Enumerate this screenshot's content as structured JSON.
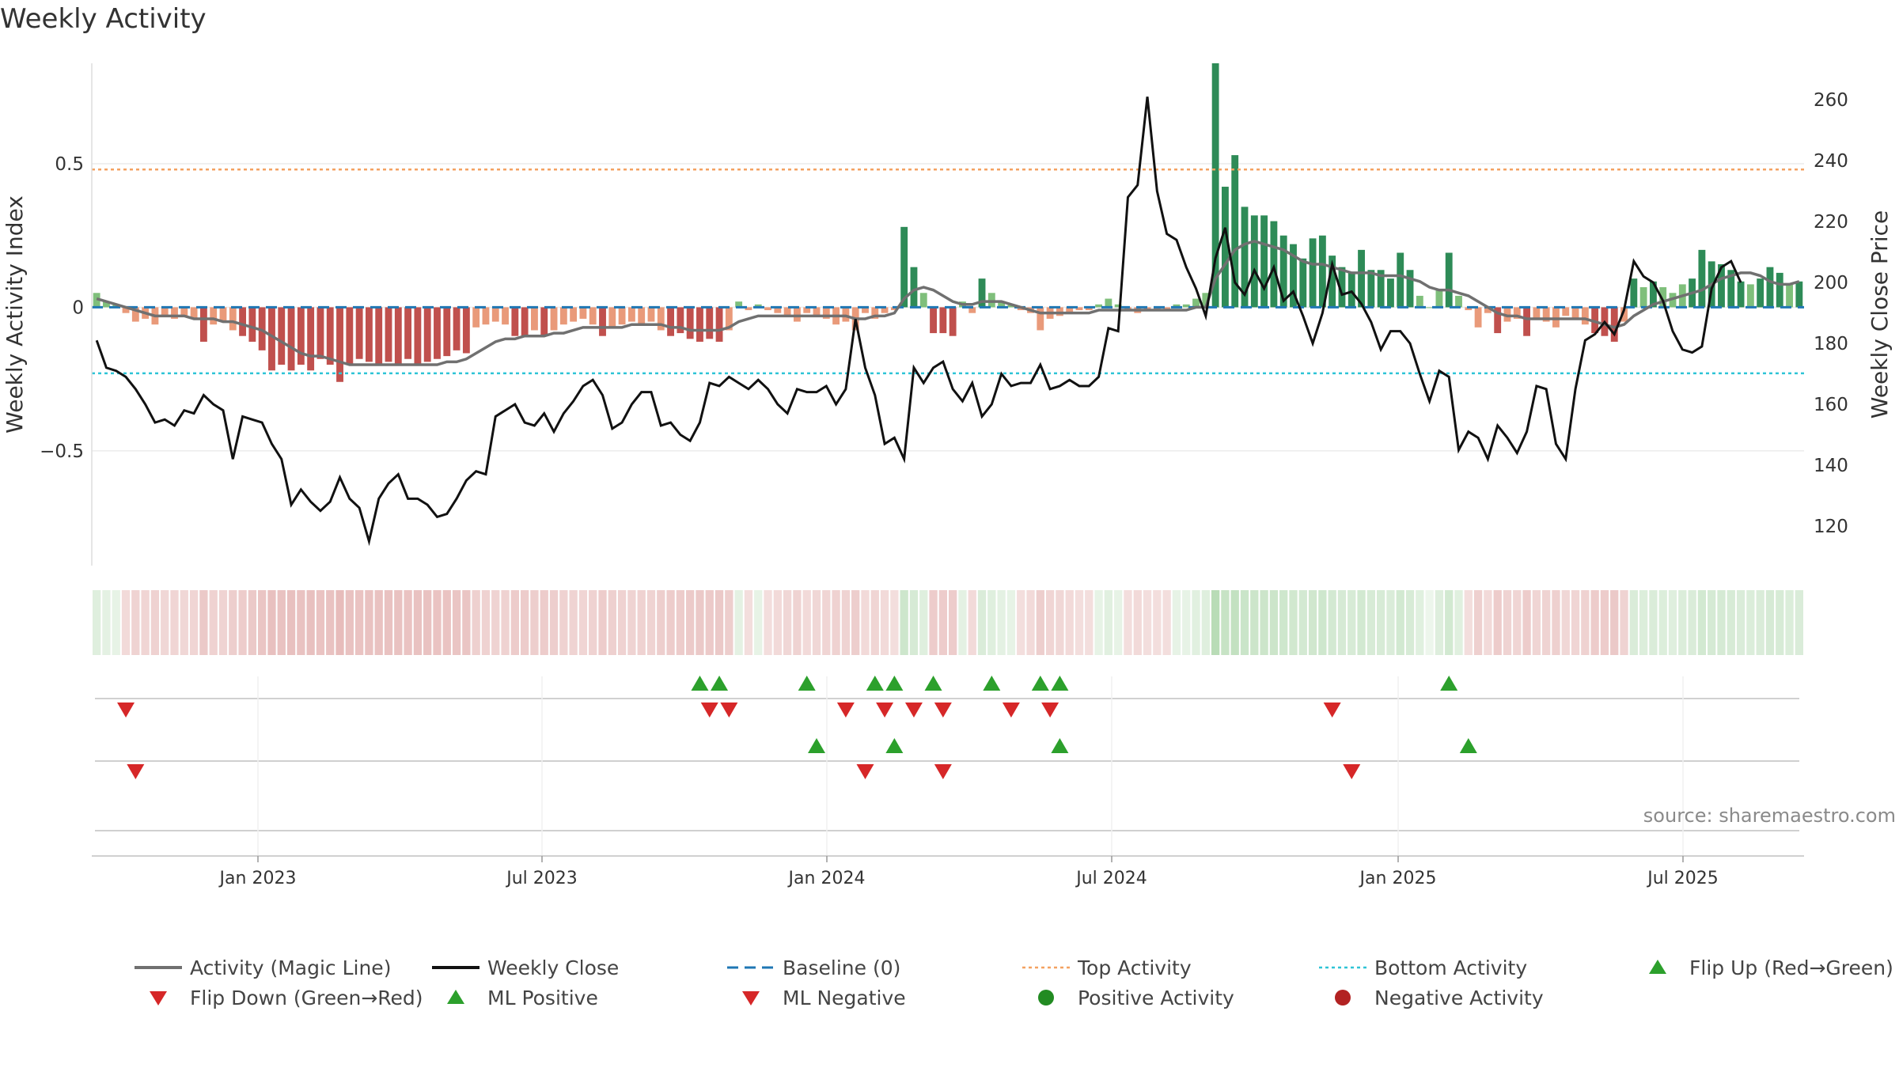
{
  "title": "Weekly Activity",
  "source": "source: sharemaestro.com",
  "colors": {
    "strong_green": "#2e8b57",
    "light_green": "#7fbf7b",
    "strong_red": "#c0504d",
    "light_red": "#e99a7a",
    "magic_line": "#707070",
    "close": "#111111",
    "baseline": "#1f77b4",
    "top": "#f4a261",
    "bottom": "#2ec4d6",
    "up_marker": "#2ca02c",
    "down_marker": "#d62728",
    "pos_dot": "#228b22",
    "neg_dot": "#b22222"
  },
  "legend": [
    {
      "label": "Activity (Magic Line)",
      "symbol": "line-gray"
    },
    {
      "label": "Weekly Close",
      "symbol": "line-black"
    },
    {
      "label": "Baseline (0)",
      "symbol": "dash-blue"
    },
    {
      "label": "Top Activity",
      "symbol": "dot-orange"
    },
    {
      "label": "Bottom Activity",
      "symbol": "dot-cyan"
    },
    {
      "label": "Flip Up (Red→Green)",
      "symbol": "tri-up"
    },
    {
      "label": "Flip Down (Green→Red)",
      "symbol": "tri-down"
    },
    {
      "label": "ML Positive",
      "symbol": "tri-up"
    },
    {
      "label": "ML Negative",
      "symbol": "tri-down"
    },
    {
      "label": "Positive Activity",
      "symbol": "circle-green"
    },
    {
      "label": "Negative Activity",
      "symbol": "circle-red"
    }
  ],
  "chart_data": {
    "type": "bar",
    "ylabel": "Weekly Activity Index",
    "ylabel_right": "Weekly Close Price",
    "ylim": [
      -0.9,
      0.85
    ],
    "ylim_right": [
      107,
      272
    ],
    "yticks": [
      {
        "v": 0.5,
        "label": "0.5"
      },
      {
        "v": 0,
        "label": "0"
      },
      {
        "v": -0.5,
        "label": "−0.5"
      }
    ],
    "yticks_right": [
      {
        "v": 260,
        "label": "260"
      },
      {
        "v": 240,
        "label": "240"
      },
      {
        "v": 220,
        "label": "220"
      },
      {
        "v": 200,
        "label": "200"
      },
      {
        "v": 180,
        "label": "180"
      },
      {
        "v": 160,
        "label": "160"
      },
      {
        "v": 140,
        "label": "140"
      },
      {
        "v": 120,
        "label": "120"
      }
    ],
    "x_ticks": [
      "Jan 2023",
      "Jul 2023",
      "Jan 2024",
      "Jul 2024",
      "Jan 2025",
      "Jul 2025"
    ],
    "top_activity": 0.48,
    "bottom_activity": -0.23,
    "baseline": 0,
    "activity": [
      0.05,
      0.02,
      0.01,
      -0.02,
      -0.05,
      -0.04,
      -0.06,
      -0.03,
      -0.04,
      -0.03,
      -0.04,
      -0.12,
      -0.06,
      -0.05,
      -0.08,
      -0.1,
      -0.12,
      -0.15,
      -0.22,
      -0.2,
      -0.22,
      -0.2,
      -0.22,
      -0.18,
      -0.2,
      -0.26,
      -0.2,
      -0.18,
      -0.19,
      -0.2,
      -0.19,
      -0.2,
      -0.18,
      -0.2,
      -0.19,
      -0.18,
      -0.17,
      -0.15,
      -0.16,
      -0.07,
      -0.06,
      -0.05,
      -0.06,
      -0.1,
      -0.1,
      -0.08,
      -0.1,
      -0.08,
      -0.06,
      -0.05,
      -0.04,
      -0.06,
      -0.1,
      -0.07,
      -0.06,
      -0.05,
      -0.06,
      -0.05,
      -0.08,
      -0.1,
      -0.09,
      -0.11,
      -0.12,
      -0.11,
      -0.12,
      -0.08,
      0.02,
      -0.01,
      0.01,
      -0.01,
      -0.02,
      -0.03,
      -0.05,
      -0.02,
      -0.03,
      -0.04,
      -0.06,
      -0.05,
      -0.08,
      -0.02,
      -0.04,
      -0.02,
      -0.01,
      0.28,
      0.14,
      0.05,
      -0.09,
      -0.09,
      -0.1,
      0.02,
      -0.02,
      0.1,
      0.05,
      0.02,
      0.01,
      -0.01,
      -0.02,
      -0.08,
      -0.04,
      -0.03,
      -0.02,
      -0.01,
      -0.01,
      0.01,
      0.03,
      0.01,
      -0.01,
      -0.02,
      -0.01,
      -0.01,
      -0.01,
      0.01,
      0.01,
      0.03,
      0.05,
      0.85,
      0.42,
      0.53,
      0.35,
      0.32,
      0.32,
      0.3,
      0.25,
      0.22,
      0.17,
      0.24,
      0.25,
      0.18,
      0.14,
      0.12,
      0.2,
      0.13,
      0.13,
      0.1,
      0.19,
      0.13,
      0.04,
      0.0,
      0.06,
      0.19,
      0.04,
      -0.01,
      -0.07,
      -0.02,
      -0.09,
      -0.05,
      -0.04,
      -0.1,
      -0.04,
      -0.05,
      -0.07,
      -0.03,
      -0.04,
      -0.06,
      -0.09,
      -0.1,
      -0.12,
      -0.05,
      0.1,
      0.07,
      0.09,
      0.07,
      0.05,
      0.08,
      0.1,
      0.2,
      0.16,
      0.15,
      0.13,
      0.09,
      0.08,
      0.1,
      0.14,
      0.12,
      0.08,
      0.09
    ],
    "magic_line": [
      0.03,
      0.02,
      0.01,
      0.0,
      -0.01,
      -0.02,
      -0.03,
      -0.03,
      -0.03,
      -0.03,
      -0.04,
      -0.04,
      -0.04,
      -0.05,
      -0.05,
      -0.06,
      -0.07,
      -0.08,
      -0.1,
      -0.12,
      -0.14,
      -0.16,
      -0.17,
      -0.17,
      -0.18,
      -0.19,
      -0.2,
      -0.2,
      -0.2,
      -0.2,
      -0.2,
      -0.2,
      -0.2,
      -0.2,
      -0.2,
      -0.2,
      -0.19,
      -0.19,
      -0.18,
      -0.16,
      -0.14,
      -0.12,
      -0.11,
      -0.11,
      -0.1,
      -0.1,
      -0.1,
      -0.09,
      -0.09,
      -0.08,
      -0.07,
      -0.07,
      -0.07,
      -0.07,
      -0.07,
      -0.06,
      -0.06,
      -0.06,
      -0.06,
      -0.07,
      -0.07,
      -0.08,
      -0.08,
      -0.08,
      -0.08,
      -0.07,
      -0.05,
      -0.04,
      -0.03,
      -0.03,
      -0.03,
      -0.03,
      -0.03,
      -0.03,
      -0.03,
      -0.03,
      -0.03,
      -0.03,
      -0.04,
      -0.04,
      -0.03,
      -0.03,
      -0.02,
      0.03,
      0.06,
      0.07,
      0.06,
      0.04,
      0.02,
      0.01,
      0.01,
      0.02,
      0.02,
      0.02,
      0.01,
      0.0,
      -0.01,
      -0.02,
      -0.02,
      -0.02,
      -0.02,
      -0.02,
      -0.02,
      -0.01,
      -0.01,
      -0.01,
      -0.01,
      -0.01,
      -0.01,
      -0.01,
      -0.01,
      -0.01,
      -0.01,
      0.0,
      0.0,
      0.1,
      0.15,
      0.2,
      0.22,
      0.23,
      0.22,
      0.21,
      0.2,
      0.18,
      0.16,
      0.15,
      0.15,
      0.14,
      0.13,
      0.12,
      0.12,
      0.12,
      0.11,
      0.11,
      0.11,
      0.1,
      0.09,
      0.07,
      0.06,
      0.06,
      0.05,
      0.04,
      0.02,
      0.0,
      -0.02,
      -0.03,
      -0.03,
      -0.04,
      -0.04,
      -0.04,
      -0.04,
      -0.04,
      -0.04,
      -0.04,
      -0.05,
      -0.06,
      -0.07,
      -0.06,
      -0.03,
      -0.01,
      0.01,
      0.02,
      0.03,
      0.04,
      0.05,
      0.06,
      0.08,
      0.1,
      0.11,
      0.12,
      0.12,
      0.11,
      0.09,
      0.08,
      0.08,
      0.09
    ],
    "close": [
      181,
      172,
      171,
      169,
      165,
      160,
      154,
      155,
      153,
      158,
      157,
      163,
      160,
      158,
      142,
      156,
      155,
      154,
      147,
      142,
      127,
      132,
      128,
      125,
      128,
      136,
      129,
      126,
      115,
      129,
      134,
      137,
      129,
      129,
      127,
      123,
      124,
      129,
      135,
      138,
      137,
      156,
      158,
      160,
      154,
      153,
      157,
      151,
      157,
      161,
      166,
      168,
      163,
      152,
      154,
      160,
      164,
      164,
      153,
      154,
      150,
      148,
      154,
      167,
      166,
      169,
      167,
      165,
      168,
      165,
      160,
      157,
      165,
      164,
      164,
      166,
      160,
      165,
      188,
      172,
      163,
      147,
      149,
      142,
      172,
      167,
      172,
      174,
      165,
      161,
      167,
      156,
      160,
      170,
      166,
      167,
      167,
      173,
      165,
      166,
      168,
      166,
      166,
      169,
      185,
      184,
      228,
      232,
      261,
      230,
      216,
      214,
      205,
      198,
      189,
      208,
      218,
      200,
      196,
      204,
      198,
      205,
      194,
      197,
      189,
      180,
      190,
      206,
      196,
      197,
      193,
      187,
      178,
      184,
      184,
      180,
      170,
      161,
      171,
      169,
      145,
      151,
      149,
      142,
      153,
      149,
      144,
      151,
      166,
      165,
      147,
      142,
      165,
      181,
      183,
      187,
      183,
      191,
      207,
      202,
      200,
      194,
      184,
      178,
      177,
      179,
      198,
      205,
      207,
      200
    ]
  }
}
